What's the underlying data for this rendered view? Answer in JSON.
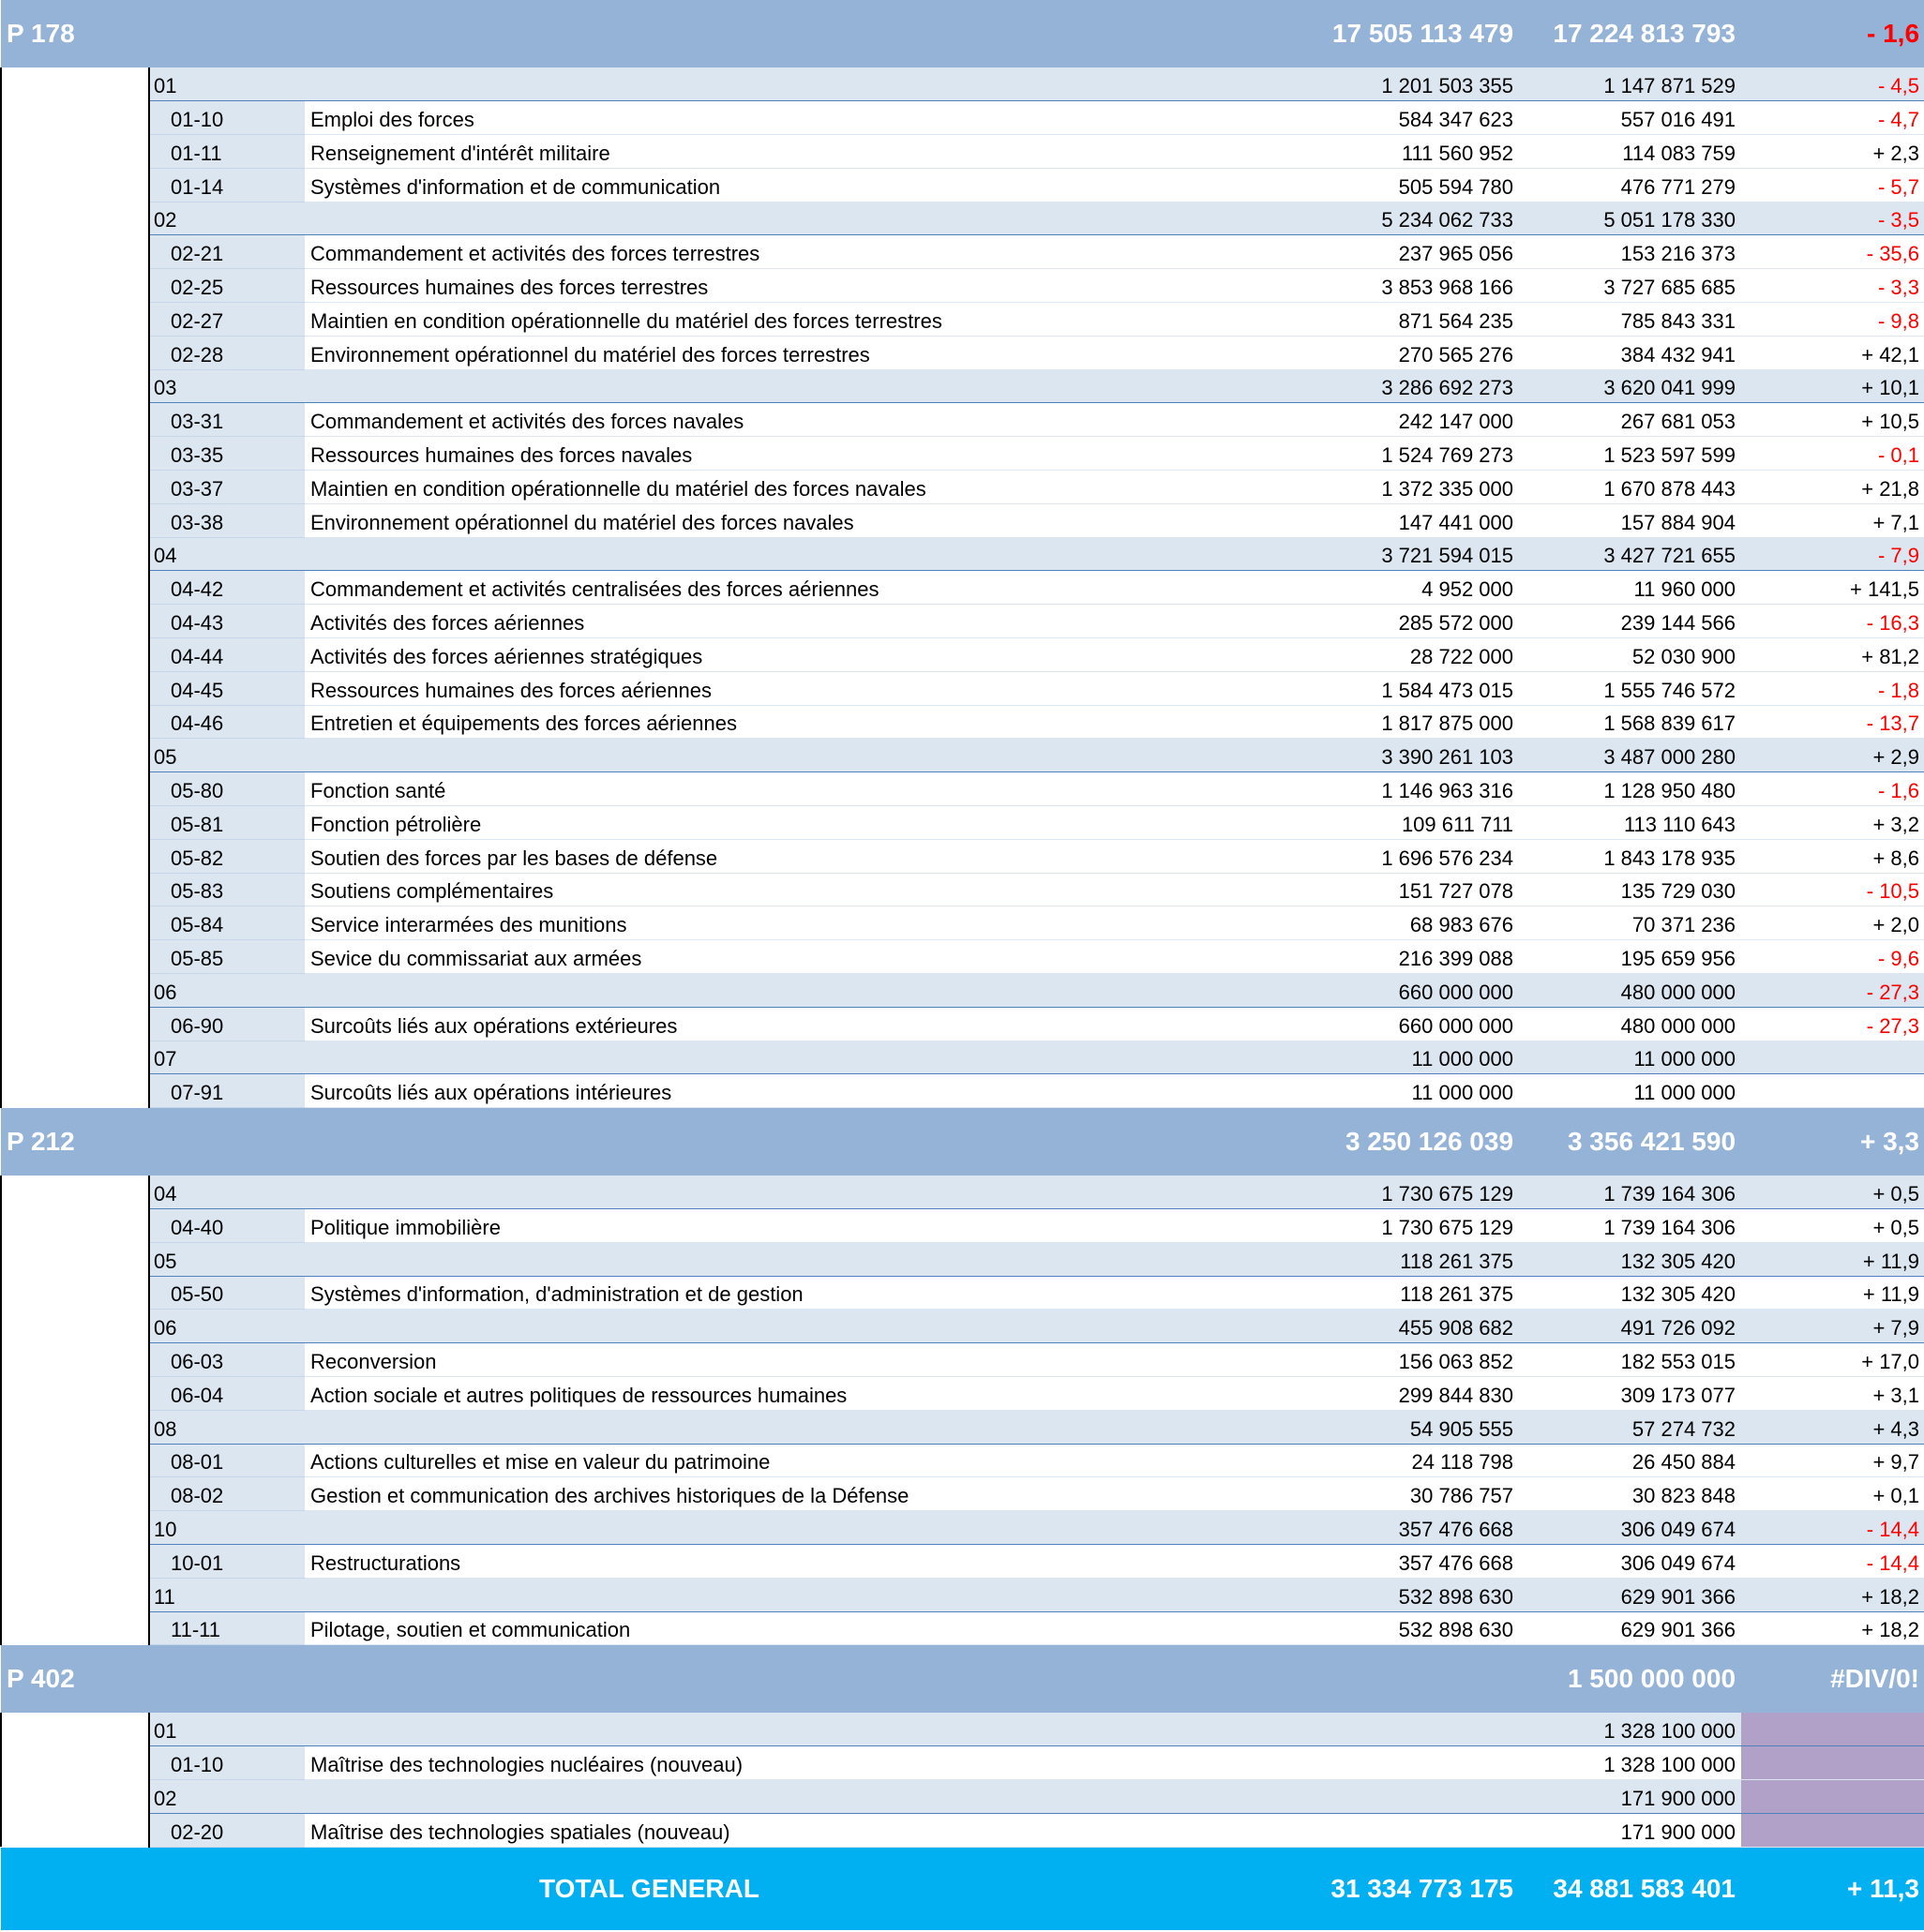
{
  "sections": [
    {
      "code": "P 178",
      "values": [
        "17 505 113 479",
        "17 224 813 793",
        "- 1,6"
      ],
      "rows": [
        {
          "code": "01",
          "values": [
            "1 201 503 355",
            "1 147 871 529",
            "- 4,5"
          ]
        },
        {
          "code": "01-10",
          "label": "Emploi des forces",
          "values": [
            "584 347 623",
            "557 016 491",
            "- 4,7"
          ]
        },
        {
          "code": "01-11",
          "label": "Renseignement d'intérêt militaire",
          "values": [
            "111 560 952",
            "114 083 759",
            "+ 2,3"
          ]
        },
        {
          "code": "01-14",
          "label": "Systèmes d'information et de communication",
          "values": [
            "505 594 780",
            "476 771 279",
            "- 5,7"
          ]
        },
        {
          "code": "02",
          "values": [
            "5 234 062 733",
            "5 051 178 330",
            "- 3,5"
          ]
        },
        {
          "code": "02-21",
          "label": "Commandement et activités des forces terrestres",
          "values": [
            "237 965 056",
            "153 216 373",
            "- 35,6"
          ]
        },
        {
          "code": "02-25",
          "label": "Ressources humaines des forces terrestres",
          "values": [
            "3 853 968 166",
            "3 727 685 685",
            "- 3,3"
          ]
        },
        {
          "code": "02-27",
          "label": "Maintien en condition opérationnelle du matériel des forces terrestres",
          "values": [
            "871 564 235",
            "785 843 331",
            "- 9,8"
          ]
        },
        {
          "code": "02-28",
          "label": "Environnement opérationnel du matériel des forces terrestres",
          "values": [
            "270 565 276",
            "384 432 941",
            "+ 42,1"
          ]
        },
        {
          "code": "03",
          "values": [
            "3 286 692 273",
            "3 620 041 999",
            "+ 10,1"
          ]
        },
        {
          "code": "03-31",
          "label": "Commandement et activités des forces navales",
          "values": [
            "242 147 000",
            "267 681 053",
            "+ 10,5"
          ]
        },
        {
          "code": "03-35",
          "label": "Ressources humaines des forces navales",
          "values": [
            "1 524 769 273",
            "1 523 597 599",
            "- 0,1"
          ]
        },
        {
          "code": "03-37",
          "label": "Maintien en condition opérationnelle du matériel des forces navales",
          "values": [
            "1 372 335 000",
            "1 670 878 443",
            "+ 21,8"
          ]
        },
        {
          "code": "03-38",
          "label": "Environnement opérationnel du matériel des forces navales",
          "values": [
            "147 441 000",
            "157 884 904",
            "+ 7,1"
          ]
        },
        {
          "code": "04",
          "values": [
            "3 721 594 015",
            "3 427 721 655",
            "- 7,9"
          ]
        },
        {
          "code": "04-42",
          "label": "Commandement et activités centralisées des forces aériennes",
          "values": [
            "4 952 000",
            "11 960 000",
            "+ 141,5"
          ]
        },
        {
          "code": "04-43",
          "label": "Activités des forces aériennes",
          "values": [
            "285 572 000",
            "239 144 566",
            "- 16,3"
          ]
        },
        {
          "code": "04-44",
          "label": "Activités des forces aériennes stratégiques",
          "values": [
            "28 722 000",
            "52 030 900",
            "+ 81,2"
          ]
        },
        {
          "code": "04-45",
          "label": "Ressources humaines des forces aériennes",
          "values": [
            "1 584 473 015",
            "1 555 746 572",
            "- 1,8"
          ]
        },
        {
          "code": "04-46",
          "label": "Entretien et équipements des forces aériennes",
          "values": [
            "1 817 875 000",
            "1 568 839 617",
            "- 13,7"
          ]
        },
        {
          "code": "05",
          "values": [
            "3 390 261 103",
            "3 487 000 280",
            "+ 2,9"
          ]
        },
        {
          "code": "05-80",
          "label": "Fonction santé",
          "values": [
            "1 146 963 316",
            "1 128 950 480",
            "- 1,6"
          ]
        },
        {
          "code": "05-81",
          "label": "Fonction pétrolière",
          "values": [
            "109 611 711",
            "113 110 643",
            "+ 3,2"
          ]
        },
        {
          "code": "05-82",
          "label": "Soutien des forces par les bases de défense",
          "values": [
            "1 696 576 234",
            "1 843 178 935",
            "+ 8,6"
          ]
        },
        {
          "code": "05-83",
          "label": "Soutiens complémentaires",
          "values": [
            "151 727 078",
            "135 729 030",
            "- 10,5"
          ]
        },
        {
          "code": "05-84",
          "label": "Service interarmées des munitions",
          "values": [
            "68 983 676",
            "70 371 236",
            "+ 2,0"
          ]
        },
        {
          "code": "05-85",
          "label": "Sevice du commissariat aux armées",
          "values": [
            "216 399 088",
            "195 659 956",
            "- 9,6"
          ]
        },
        {
          "code": "06",
          "values": [
            "660 000 000",
            "480 000 000",
            "- 27,3"
          ]
        },
        {
          "code": "06-90",
          "label": "Surcoûts liés aux opérations extérieures",
          "values": [
            "660 000 000",
            "480 000 000",
            "- 27,3"
          ]
        },
        {
          "code": "07",
          "values": [
            "11 000 000",
            "11 000 000",
            null
          ]
        },
        {
          "code": "07-91",
          "label": "Surcoûts liés aux opérations intérieures",
          "values": [
            "11 000 000",
            "11 000 000",
            null
          ]
        }
      ]
    },
    {
      "code": "P 212",
      "values": [
        "3 250 126 039",
        "3 356 421 590",
        "+ 3,3"
      ],
      "rows": [
        {
          "code": "04",
          "values": [
            "1 730 675 129",
            "1 739 164 306",
            "+ 0,5"
          ]
        },
        {
          "code": "04-40",
          "label": "Politique immobilière",
          "values": [
            "1 730 675 129",
            "1 739 164 306",
            "+ 0,5"
          ]
        },
        {
          "code": "05",
          "values": [
            "118 261 375",
            "132 305 420",
            "+ 11,9"
          ]
        },
        {
          "code": "05-50",
          "label": "Systèmes d'information, d'administration et de gestion",
          "values": [
            "118 261 375",
            "132 305 420",
            "+ 11,9"
          ]
        },
        {
          "code": "06",
          "values": [
            "455 908 682",
            "491 726 092",
            "+ 7,9"
          ]
        },
        {
          "code": "06-03",
          "label": "Reconversion",
          "values": [
            "156 063 852",
            "182 553 015",
            "+ 17,0"
          ]
        },
        {
          "code": "06-04",
          "label": "Action sociale et autres politiques de ressources humaines",
          "values": [
            "299 844 830",
            "309 173 077",
            "+ 3,1"
          ]
        },
        {
          "code": "08",
          "values": [
            "54 905 555",
            "57 274 732",
            "+ 4,3"
          ]
        },
        {
          "code": "08-01",
          "label": "Actions culturelles et mise en valeur du patrimoine",
          "values": [
            "24 118 798",
            "26 450 884",
            "+ 9,7"
          ]
        },
        {
          "code": "08-02",
          "label": "Gestion et communication des archives historiques de la Défense",
          "values": [
            "30 786 757",
            "30 823 848",
            "+ 0,1"
          ]
        },
        {
          "code": "10",
          "values": [
            "357 476 668",
            "306 049 674",
            "- 14,4"
          ]
        },
        {
          "code": "10-01",
          "label": "Restructurations",
          "values": [
            "357 476 668",
            "306 049 674",
            "- 14,4"
          ]
        },
        {
          "code": "11",
          "values": [
            "532 898 630",
            "629 901 366",
            "+ 18,2"
          ]
        },
        {
          "code": "11-11",
          "label": "Pilotage, soutien et communication",
          "values": [
            "532 898 630",
            "629 901 366",
            "+ 18,2"
          ]
        }
      ]
    },
    {
      "code": "P 402",
      "values": [
        null,
        "1 500 000 000",
        "#DIV/0!"
      ],
      "rows": [
        {
          "code": "01",
          "values": [
            null,
            "1 328 100 000",
            null
          ]
        },
        {
          "code": "01-10",
          "label": "Maîtrise des technologies nucléaires (nouveau)",
          "values": [
            null,
            "1 328 100 000",
            null
          ]
        },
        {
          "code": "02",
          "values": [
            null,
            "171 900 000",
            null
          ]
        },
        {
          "code": "02-20",
          "label": "Maîtrise des technologies spatiales (nouveau)",
          "values": [
            null,
            "171 900 000",
            null
          ]
        }
      ]
    }
  ],
  "total": {
    "label": "TOTAL GENERAL",
    "values": [
      "31 334 773 175",
      "34 881 583 401",
      "+ 11,3"
    ]
  }
}
